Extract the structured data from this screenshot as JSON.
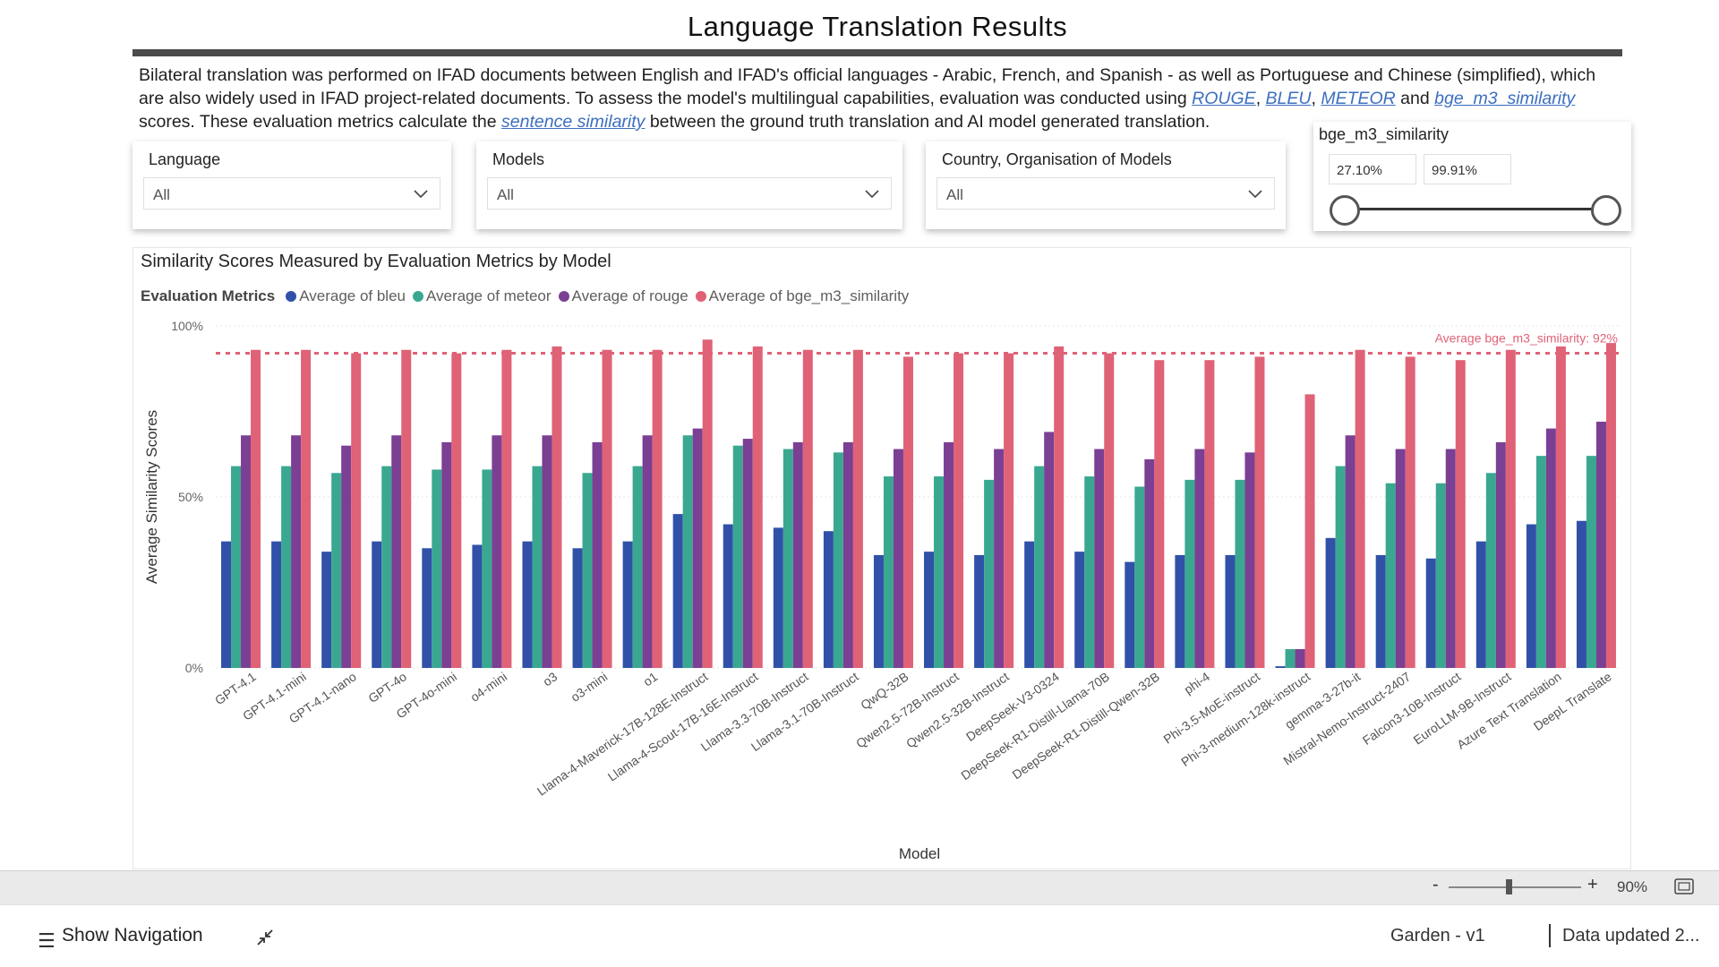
{
  "page": {
    "title": "Language Translation Results",
    "intro": {
      "p1": "Bilateral translation was performed on IFAD documents between English and IFAD's official languages - Arabic, French, and Spanish - as well as Portuguese and Chinese (simplified), which are also widely used in IFAD project-related documents. To assess the model's multilingual capabilities, evaluation was conducted using ",
      "link_rouge": "ROUGE",
      "sep1": ", ",
      "link_bleu": "BLEU",
      "sep2": ", ",
      "link_meteor": "METEOR",
      "and": " and ",
      "link_bge": "bge_m3_similarity",
      "p2": " scores. These evaluation metrics calculate the ",
      "link_sentence": "sentence similarity",
      "p3": " between the ground truth translation and AI model generated translation."
    }
  },
  "slicers": {
    "language": {
      "label": "Language",
      "value": "All"
    },
    "models": {
      "label": "Models",
      "value": "All"
    },
    "country": {
      "label": "Country, Organisation of Models",
      "value": "All"
    },
    "similarity": {
      "label": "bge_m3_similarity",
      "min": "27.10%",
      "max": "99.91%"
    }
  },
  "chart_data": {
    "type": "bar",
    "title": "Similarity Scores Measured by Evaluation Metrics by Model",
    "legend_title": "Evaluation Metrics",
    "xlabel": "Model",
    "ylabel": "Average Similarity Scores",
    "ylim": [
      0,
      100
    ],
    "yticks": [
      "0%",
      "50%",
      "100%"
    ],
    "reference_line": {
      "label": "Average bge_m3_similarity: 92%",
      "value": 92
    },
    "categories": [
      "GPT-4.1",
      "GPT-4.1-mini",
      "GPT-4.1-nano",
      "GPT-4o",
      "GPT-4o-mini",
      "o4-mini",
      "o3",
      "o3-mini",
      "o1",
      "Llama-4-Maverick-17B-128E-Instruct",
      "Llama-4-Scout-17B-16E-Instruct",
      "Llama-3.3-70B-Instruct",
      "Llama-3.1-70B-Instruct",
      "QwQ-32B",
      "Qwen2.5-72B-Instruct",
      "Qwen2.5-32B-Instruct",
      "DeepSeek-V3-0324",
      "DeepSeek-R1-Distill-Llama-70B",
      "DeepSeek-R1-Distill-Qwen-32B",
      "phi-4",
      "Phi-3.5-MoE-instruct",
      "Phi-3-medium-128k-instruct",
      "gemma-3-27b-it",
      "Mistral-Nemo-Instruct-2407",
      "Falcon3-10B-Instruct",
      "EuroLLM-9B-Instruct",
      "Azure Text Translation",
      "DeepL Translate"
    ],
    "series": [
      {
        "name": "Average of bleu",
        "color": "#3151a8",
        "values": [
          37,
          37,
          34,
          37,
          35,
          36,
          37,
          35,
          37,
          45,
          42,
          41,
          40,
          33,
          34,
          33,
          37,
          34,
          31,
          33,
          33,
          0.5,
          38,
          33,
          32,
          37,
          42,
          43
        ]
      },
      {
        "name": "Average of meteor",
        "color": "#3aa890",
        "values": [
          59,
          59,
          57,
          59,
          58,
          58,
          59,
          57,
          59,
          68,
          65,
          64,
          63,
          56,
          56,
          55,
          59,
          56,
          53,
          55,
          55,
          5.5,
          59,
          54,
          54,
          57,
          62,
          62
        ]
      },
      {
        "name": "Average of rouge",
        "color": "#7b3f93",
        "values": [
          68,
          68,
          65,
          68,
          66,
          68,
          68,
          66,
          68,
          70,
          67,
          66,
          66,
          64,
          66,
          64,
          69,
          64,
          61,
          64,
          63,
          5.5,
          68,
          64,
          64,
          66,
          70,
          72
        ]
      },
      {
        "name": "Average of bge_m3_similarity",
        "color": "#e06277",
        "values": [
          93,
          93,
          92,
          93,
          92,
          93,
          94,
          93,
          93,
          96,
          94,
          93,
          93,
          91,
          92,
          92,
          94,
          92,
          90,
          90,
          91,
          80,
          93,
          91,
          90,
          93,
          94,
          95
        ]
      }
    ]
  },
  "status": {
    "zoom_minus": "-",
    "zoom_plus": "+",
    "zoom": "90%"
  },
  "footer": {
    "nav_label": "Show Navigation",
    "report_name": "Garden - v1",
    "updated": "Data updated 2..."
  }
}
